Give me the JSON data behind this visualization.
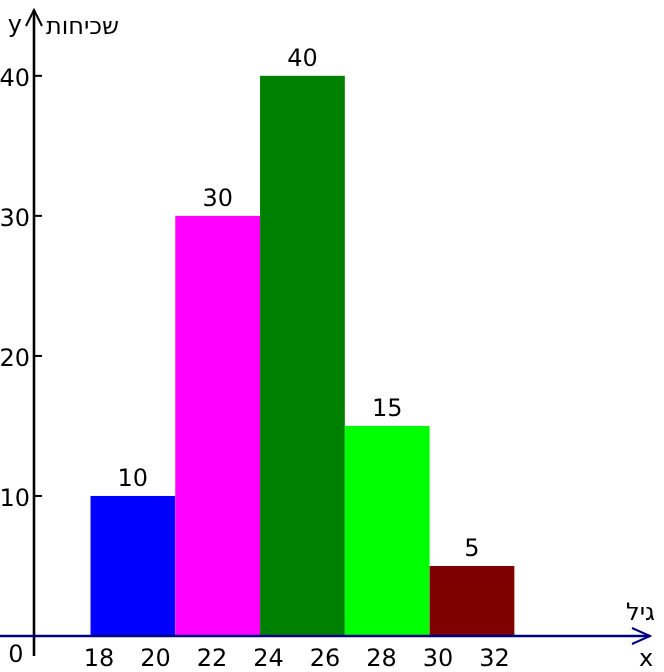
{
  "chart_data": {
    "type": "histogram",
    "xlabel": "גיל",
    "ylabel": "שכיחות",
    "annotations": [
      "y",
      "x"
    ],
    "bins": [
      17.7,
      20.7,
      23.7,
      26.7,
      29.7,
      32.7
    ],
    "values": [
      10,
      30,
      40,
      15,
      5
    ],
    "colors": [
      "#0000ff",
      "#ff00ff",
      "#008000",
      "#00ff00",
      "#800000"
    ],
    "data_labels": true,
    "xlim": [
      15.7,
      37.5
    ],
    "xticks": [
      18,
      20,
      22,
      24,
      26,
      28,
      30,
      32
    ],
    "ylim": [
      0,
      44.7
    ],
    "yticks": [
      0,
      10,
      20,
      30,
      40
    ],
    "grid": false
  }
}
